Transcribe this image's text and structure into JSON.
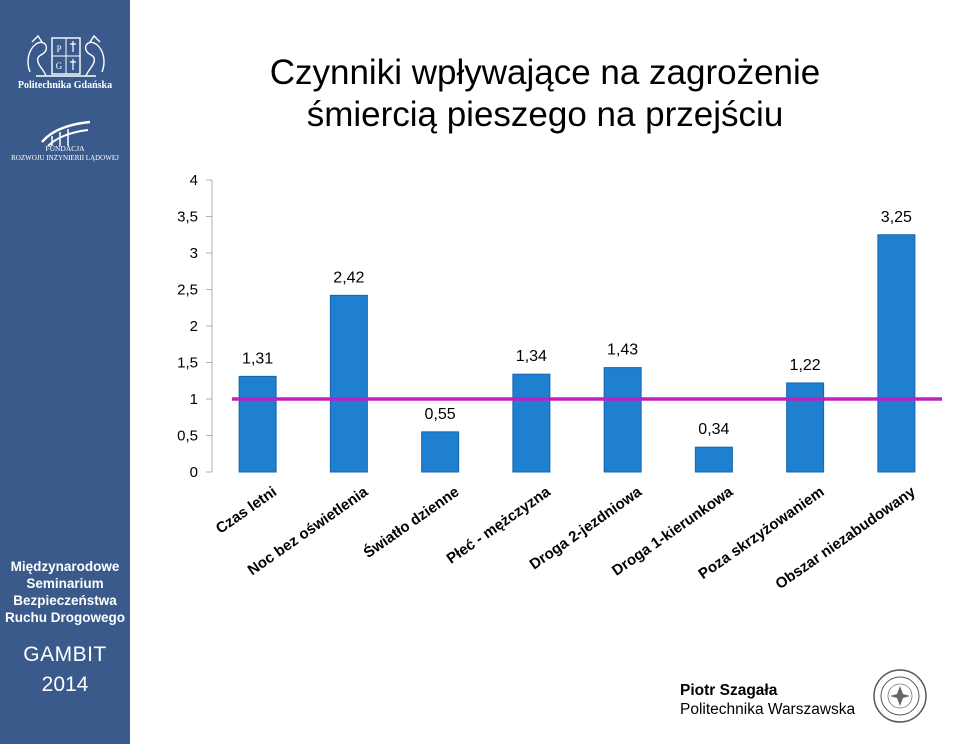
{
  "sidebar": {
    "university_name": "Politechnika Gdańska",
    "foundation_line1": "FUNDACJA",
    "foundation_line2": "ROZWOJU INŻYNIERII LĄDOWEJ",
    "seminar_lines": [
      "Międzynarodowe",
      "Seminarium",
      "Bezpieczeństwa",
      "Ruchu Drogowego"
    ],
    "event": "GAMBIT",
    "year": "2014",
    "color": "#3a5a8c"
  },
  "title_lines": [
    "Czynniki wpływające na zagrożenie",
    "śmiercią pieszego na przejściu"
  ],
  "chart_data": {
    "type": "bar",
    "categories": [
      "Czas letni",
      "Noc bez oświetlenia",
      "Światło dzienne",
      "Płeć - mężczyzna",
      "Droga 2-jezdniowa",
      "Droga 1-kierunkowa",
      "Poza skrzyżowaniem",
      "Obszar niezabudowany"
    ],
    "values": [
      1.31,
      2.42,
      0.55,
      1.34,
      1.43,
      0.34,
      1.22,
      3.25
    ],
    "value_labels": [
      "1,31",
      "2,42",
      "0,55",
      "1,34",
      "1,43",
      "0,34",
      "1,22",
      "3,25"
    ],
    "ylim": [
      0,
      4
    ],
    "yticks": [
      0,
      0.5,
      1,
      1.5,
      2,
      2.5,
      3,
      3.5,
      4
    ],
    "ytick_labels": [
      "0",
      "0,5",
      "1",
      "1,5",
      "2",
      "2,5",
      "3",
      "3,5",
      "4"
    ],
    "reference_line": 1,
    "grid": false,
    "title": "",
    "xlabel": "",
    "ylabel": "",
    "colors": {
      "bar": "#1f80d0",
      "bar_edge": "#1565b0",
      "reference_line": "#c020c0",
      "axis": "#b0b0b0"
    }
  },
  "author": {
    "name": "Piotr Szagała",
    "affiliation": "Politechnika Warszawska"
  }
}
